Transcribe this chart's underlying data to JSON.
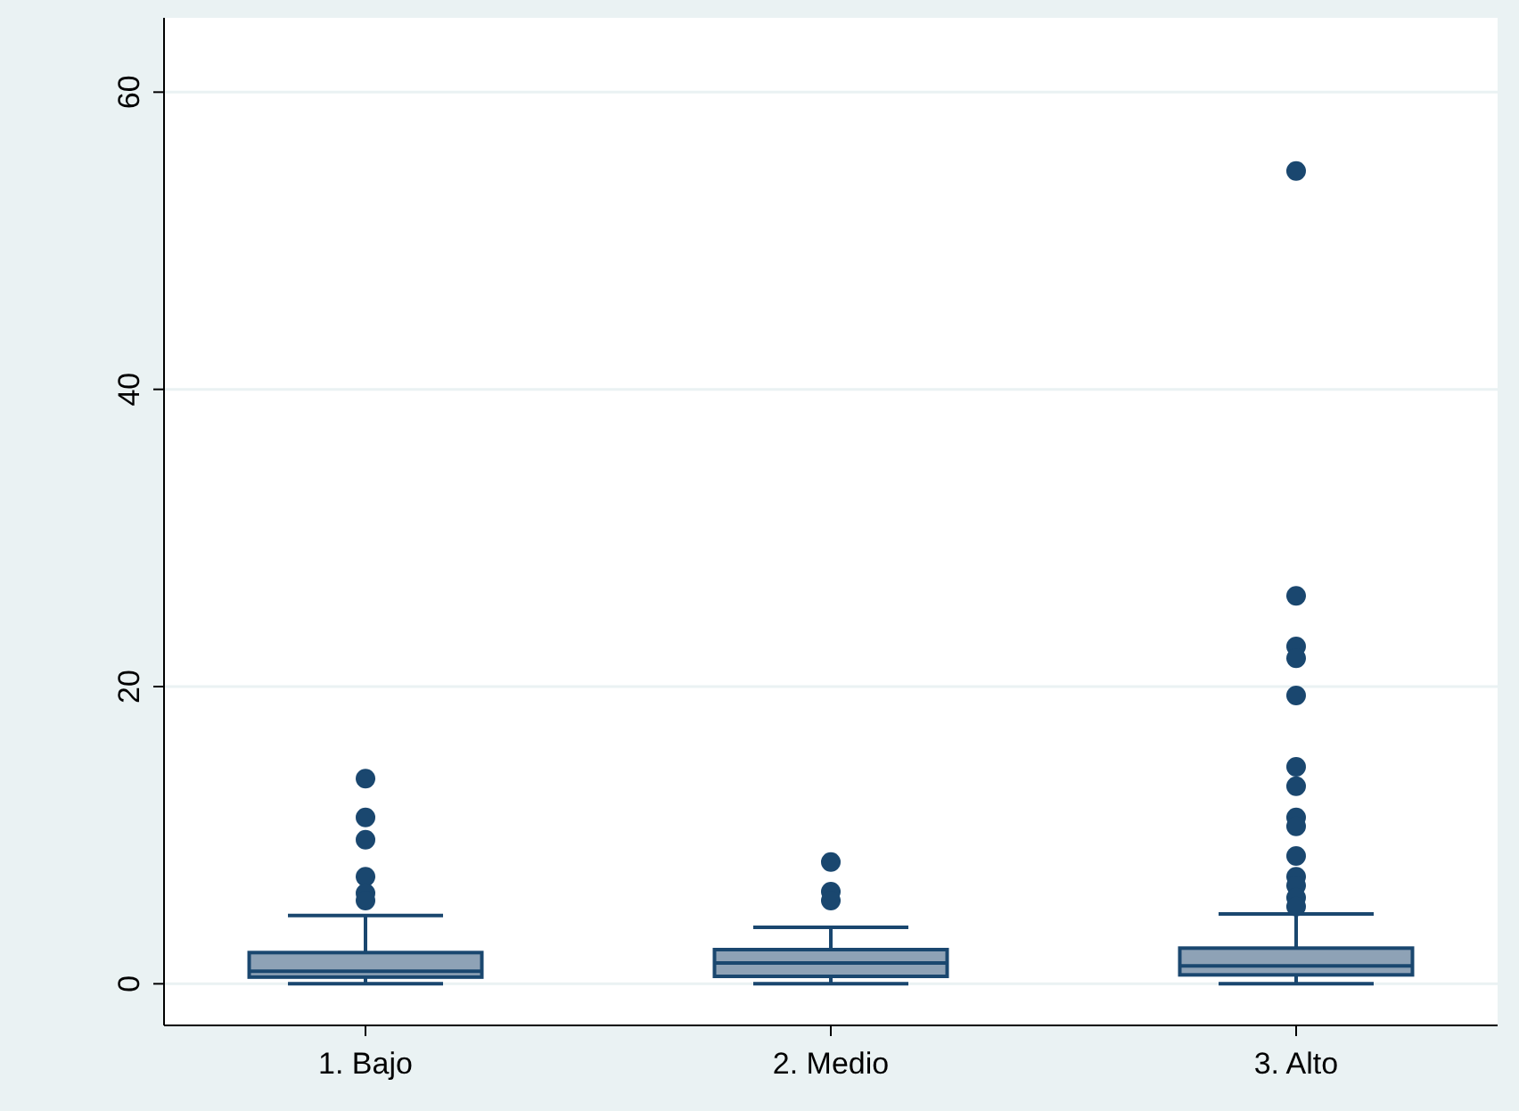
{
  "chart_data": {
    "type": "box",
    "categories": [
      "1. Bajo",
      "2. Medio",
      "3. Alto"
    ],
    "color": "#8ea2b6",
    "ylim": [
      -2.8,
      65
    ],
    "yticks": [
      0,
      20,
      40,
      60
    ],
    "grid": "y",
    "boxes": [
      {
        "low": 0,
        "q1": 0.45,
        "median": 0.85,
        "q3": 2.1,
        "high": 4.6,
        "outliers": [
          13.8,
          11.2,
          9.7,
          7.2,
          6.1,
          5.6
        ]
      },
      {
        "low": 0,
        "q1": 0.5,
        "median": 1.4,
        "q3": 2.3,
        "high": 3.8,
        "outliers": [
          8.2,
          6.2,
          5.6
        ]
      },
      {
        "low": 0,
        "q1": 0.6,
        "median": 1.2,
        "q3": 2.4,
        "high": 4.7,
        "outliers": [
          54.7,
          26.1,
          22.7,
          21.9,
          19.4,
          14.6,
          13.3,
          11.2,
          10.6,
          8.6,
          7.2,
          6.6,
          5.8,
          5.2
        ]
      }
    ]
  }
}
